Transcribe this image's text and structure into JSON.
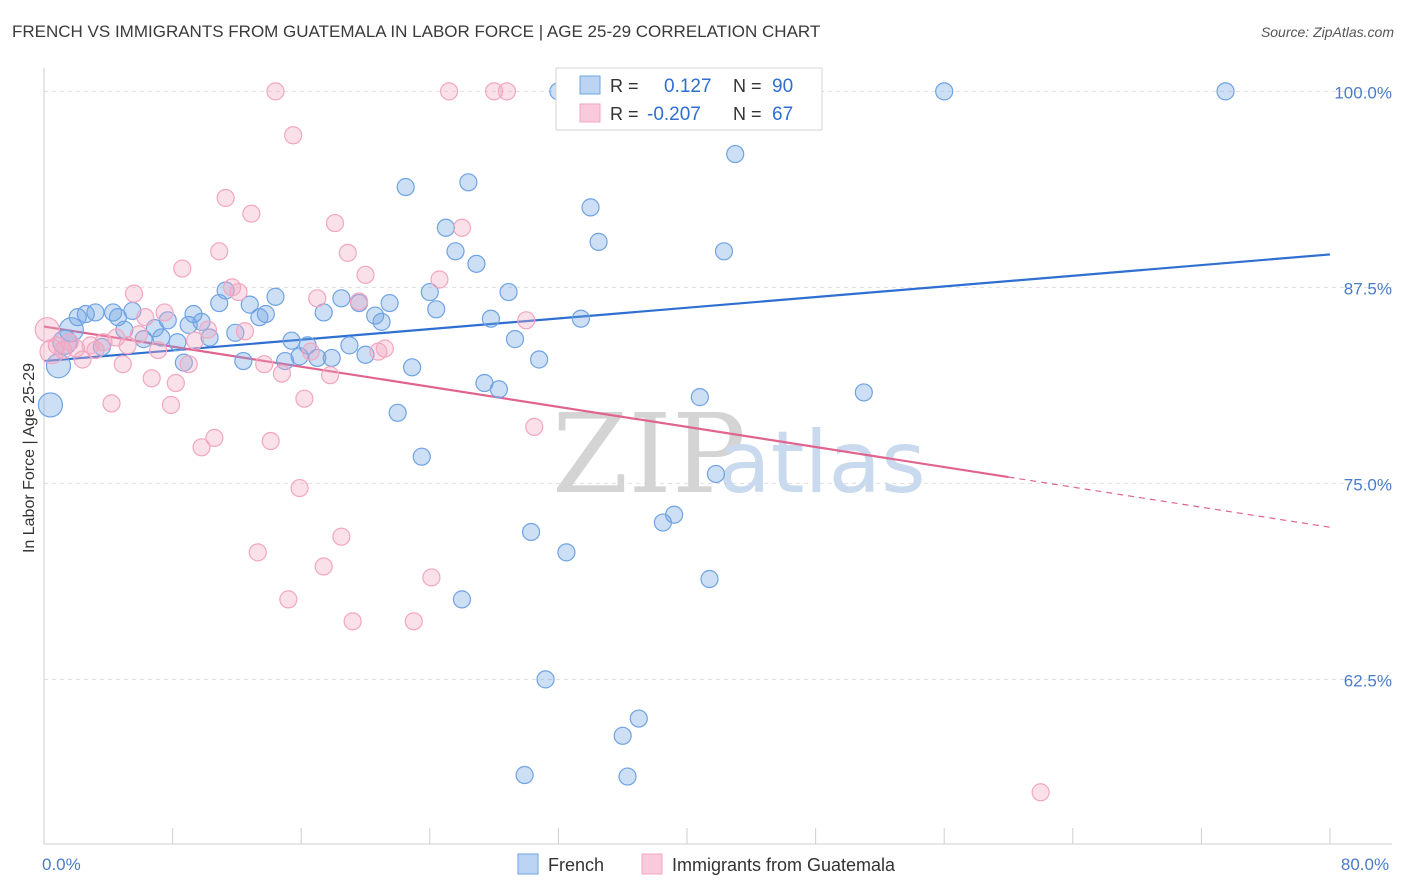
{
  "header": {
    "title": "FRENCH VS IMMIGRANTS FROM GUATEMALA IN LABOR FORCE | AGE 25-29 CORRELATION CHART",
    "source": "Source: ZipAtlas.com"
  },
  "watermark": {
    "zip": "ZIP",
    "atlas": "atlas"
  },
  "chart_data": {
    "type": "scatter",
    "title": "FRENCH VS IMMIGRANTS FROM GUATEMALA IN LABOR FORCE | AGE 25-29 CORRELATION CHART",
    "ylabel": "In Labor Force | Age 25-29",
    "xlabel": "",
    "xlim": [
      0,
      80
    ],
    "ylim": [
      52,
      102
    ],
    "x_tick_labels": [
      {
        "value": 0,
        "label": "0.0%"
      },
      {
        "value": 80,
        "label": "80.0%"
      }
    ],
    "y_tick_labels": [
      {
        "value": 100,
        "label": "100.0%"
      },
      {
        "value": 87.5,
        "label": "87.5%"
      },
      {
        "value": 75,
        "label": "75.0%"
      },
      {
        "value": 62.5,
        "label": "62.5%"
      }
    ],
    "grid": "horizontal dashed",
    "legend_position": "top-center",
    "legend_stats": [
      {
        "r_label": "R =",
        "r": "0.127",
        "n_label": "N =",
        "n": "90"
      },
      {
        "r_label": "R =",
        "r": "-0.207",
        "n_label": "N =",
        "n": "67"
      }
    ],
    "series": [
      {
        "name": "French",
        "color": "#6fa3e3",
        "trend_color": "#2f6fd1",
        "trend": {
          "x": [
            0,
            80
          ],
          "y": [
            82.8,
            89.6
          ],
          "dashed_from": null
        },
        "points": [
          [
            0.4,
            80.0
          ],
          [
            0.9,
            82.5
          ],
          [
            1.3,
            84.0
          ],
          [
            1.7,
            84.8
          ],
          [
            2.1,
            85.6
          ],
          [
            2.6,
            85.8
          ],
          [
            3.2,
            85.9
          ],
          [
            3.6,
            83.7
          ],
          [
            4.3,
            85.9
          ],
          [
            4.6,
            85.6
          ],
          [
            5.0,
            84.8
          ],
          [
            5.5,
            86.0
          ],
          [
            6.2,
            84.2
          ],
          [
            6.9,
            84.9
          ],
          [
            7.3,
            84.3
          ],
          [
            7.7,
            85.4
          ],
          [
            8.3,
            84.0
          ],
          [
            8.7,
            82.7
          ],
          [
            9.0,
            85.1
          ],
          [
            9.3,
            85.8
          ],
          [
            9.8,
            85.3
          ],
          [
            10.3,
            84.3
          ],
          [
            10.9,
            86.5
          ],
          [
            11.3,
            87.3
          ],
          [
            11.9,
            84.6
          ],
          [
            12.4,
            82.8
          ],
          [
            12.8,
            86.4
          ],
          [
            13.4,
            85.6
          ],
          [
            13.8,
            85.8
          ],
          [
            14.4,
            86.9
          ],
          [
            15.0,
            82.8
          ],
          [
            15.4,
            84.1
          ],
          [
            15.9,
            83.1
          ],
          [
            16.4,
            83.8
          ],
          [
            17.0,
            83.0
          ],
          [
            17.4,
            85.9
          ],
          [
            17.9,
            83.0
          ],
          [
            18.5,
            86.8
          ],
          [
            19.0,
            83.8
          ],
          [
            19.6,
            86.5
          ],
          [
            20.0,
            83.2
          ],
          [
            20.6,
            85.7
          ],
          [
            21.0,
            85.3
          ],
          [
            21.5,
            86.5
          ],
          [
            22.0,
            79.5
          ],
          [
            22.5,
            93.9
          ],
          [
            22.9,
            82.4
          ],
          [
            23.5,
            76.7
          ],
          [
            24.0,
            87.2
          ],
          [
            24.4,
            86.1
          ],
          [
            25.0,
            91.3
          ],
          [
            25.6,
            89.8
          ],
          [
            26.0,
            67.6
          ],
          [
            26.4,
            94.2
          ],
          [
            26.9,
            89.0
          ],
          [
            27.4,
            81.4
          ],
          [
            27.8,
            85.5
          ],
          [
            28.3,
            81.0
          ],
          [
            28.9,
            87.2
          ],
          [
            29.3,
            84.2
          ],
          [
            29.9,
            56.4
          ],
          [
            30.3,
            71.9
          ],
          [
            30.8,
            82.9
          ],
          [
            31.2,
            62.5
          ],
          [
            32.0,
            100.0
          ],
          [
            32.5,
            70.6
          ],
          [
            33.0,
            100.0
          ],
          [
            33.4,
            85.5
          ],
          [
            34.0,
            92.6
          ],
          [
            34.5,
            90.4
          ],
          [
            35.2,
            100.0
          ],
          [
            36.0,
            58.9
          ],
          [
            36.3,
            56.3
          ],
          [
            37.0,
            60.0
          ],
          [
            37.6,
            100.0
          ],
          [
            38.5,
            72.5
          ],
          [
            39.2,
            73.0
          ],
          [
            40.0,
            100.0
          ],
          [
            40.8,
            80.5
          ],
          [
            41.4,
            68.9
          ],
          [
            41.8,
            75.6
          ],
          [
            42.3,
            89.8
          ],
          [
            43.0,
            96.0
          ],
          [
            44.0,
            100.0
          ],
          [
            45.0,
            100.0
          ],
          [
            47.5,
            100.0
          ],
          [
            51.0,
            80.8
          ],
          [
            56.0,
            100.0
          ],
          [
            73.5,
            100.0
          ]
        ]
      },
      {
        "name": "Immigrants from Guatemala",
        "color": "#f2a6c1",
        "trend_color": "#e0648f",
        "trend": {
          "x": [
            0,
            80
          ],
          "y": [
            85.0,
            72.2
          ],
          "dashed_from": 60
        },
        "points": [
          [
            0.2,
            84.8
          ],
          [
            0.5,
            83.4
          ],
          [
            0.8,
            83.8
          ],
          [
            1.2,
            83.5
          ],
          [
            1.6,
            84.0
          ],
          [
            2.0,
            83.6
          ],
          [
            2.4,
            82.9
          ],
          [
            2.9,
            83.8
          ],
          [
            3.2,
            83.5
          ],
          [
            3.7,
            84.0
          ],
          [
            4.2,
            80.1
          ],
          [
            4.5,
            84.3
          ],
          [
            4.9,
            82.6
          ],
          [
            5.2,
            83.8
          ],
          [
            5.6,
            87.1
          ],
          [
            5.9,
            84.5
          ],
          [
            6.3,
            85.6
          ],
          [
            6.7,
            81.7
          ],
          [
            7.1,
            83.5
          ],
          [
            7.5,
            85.9
          ],
          [
            7.9,
            80.0
          ],
          [
            8.2,
            81.4
          ],
          [
            8.6,
            88.7
          ],
          [
            9.0,
            82.6
          ],
          [
            9.4,
            84.1
          ],
          [
            9.8,
            77.3
          ],
          [
            10.2,
            84.8
          ],
          [
            10.6,
            77.9
          ],
          [
            10.9,
            89.8
          ],
          [
            11.3,
            93.2
          ],
          [
            11.7,
            87.5
          ],
          [
            12.1,
            87.2
          ],
          [
            12.5,
            84.7
          ],
          [
            12.9,
            92.2
          ],
          [
            13.3,
            70.6
          ],
          [
            13.7,
            82.6
          ],
          [
            14.1,
            77.7
          ],
          [
            14.4,
            100.0
          ],
          [
            14.8,
            82.0
          ],
          [
            15.2,
            67.6
          ],
          [
            15.5,
            97.2
          ],
          [
            15.9,
            74.7
          ],
          [
            16.2,
            80.4
          ],
          [
            16.6,
            83.4
          ],
          [
            17.0,
            86.8
          ],
          [
            17.4,
            69.7
          ],
          [
            17.8,
            81.9
          ],
          [
            18.1,
            91.6
          ],
          [
            18.5,
            71.6
          ],
          [
            18.9,
            89.7
          ],
          [
            19.2,
            66.2
          ],
          [
            19.6,
            86.6
          ],
          [
            20.0,
            88.3
          ],
          [
            20.8,
            83.4
          ],
          [
            21.2,
            83.6
          ],
          [
            23.0,
            66.2
          ],
          [
            24.1,
            69.0
          ],
          [
            24.6,
            88.0
          ],
          [
            25.2,
            100.0
          ],
          [
            26.0,
            91.3
          ],
          [
            28.0,
            100.0
          ],
          [
            28.8,
            100.0
          ],
          [
            30.0,
            85.4
          ],
          [
            30.5,
            78.6
          ],
          [
            35.0,
            100.0
          ],
          [
            37.5,
            100.0
          ],
          [
            62.0,
            55.3
          ]
        ]
      }
    ]
  }
}
